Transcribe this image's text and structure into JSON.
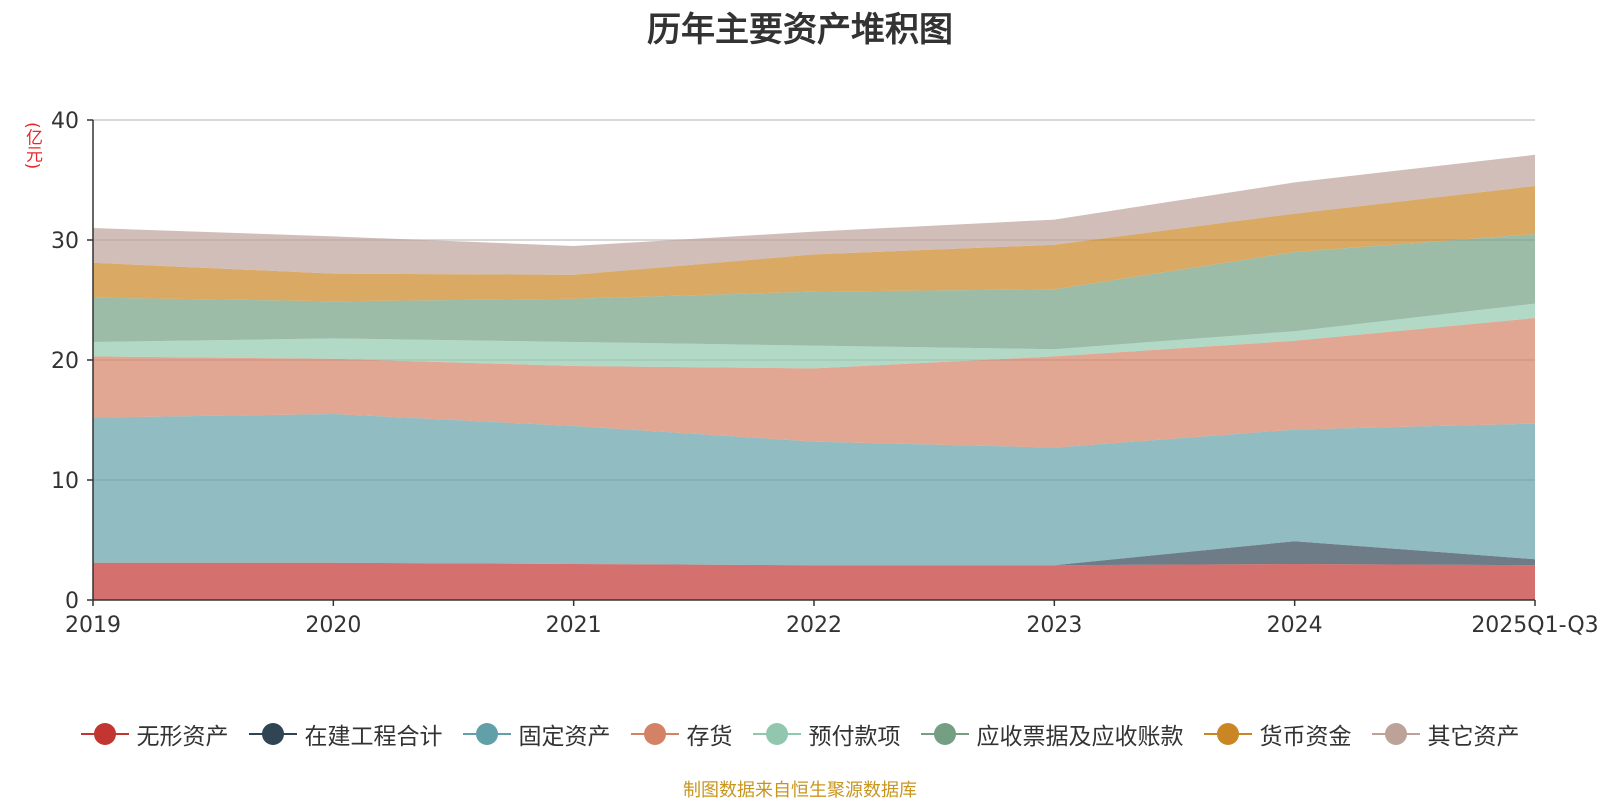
{
  "title": "历年主要资产堆积图",
  "source_note": "制图数据来自恒生聚源数据库",
  "chart_data": {
    "type": "area",
    "stacked": true,
    "title": "历年主要资产堆积图",
    "ylabel": "(亿元)",
    "xlabel": "",
    "categories": [
      "2019",
      "2020",
      "2021",
      "2022",
      "2023",
      "2024",
      "2025Q1-Q3"
    ],
    "ylim": [
      0,
      40
    ],
    "yticks": [
      0,
      10,
      20,
      30,
      40
    ],
    "grid": true,
    "legend_position": "bottom",
    "series": [
      {
        "name": "无形资产",
        "color": "#c23531",
        "values": [
          3.1,
          3.1,
          3.0,
          2.9,
          2.9,
          3.0,
          2.9
        ]
      },
      {
        "name": "在建工程合计",
        "color": "#2f4554",
        "values": [
          0.0,
          0.0,
          0.0,
          0.0,
          0.0,
          1.9,
          0.5
        ]
      },
      {
        "name": "固定资产",
        "color": "#61a0a8",
        "values": [
          12.1,
          12.4,
          11.5,
          10.3,
          9.8,
          9.3,
          11.3
        ]
      },
      {
        "name": "存货",
        "color": "#d48265",
        "values": [
          5.1,
          4.6,
          5.0,
          6.1,
          7.6,
          7.4,
          8.8
        ]
      },
      {
        "name": "预付款项",
        "color": "#91c7ae",
        "values": [
          1.2,
          1.7,
          2.0,
          1.9,
          0.6,
          0.8,
          1.2
        ]
      },
      {
        "name": "应收票据及应收账款",
        "color": "#749f83",
        "values": [
          3.7,
          3.1,
          3.6,
          4.5,
          5.0,
          6.6,
          5.8
        ]
      },
      {
        "name": "货币资金",
        "color": "#ca8622",
        "values": [
          2.9,
          2.3,
          2.0,
          3.1,
          3.7,
          3.2,
          4.0
        ]
      },
      {
        "name": "其它资产",
        "color": "#bda29a",
        "values": [
          2.9,
          3.1,
          2.4,
          1.9,
          2.1,
          2.6,
          2.6
        ]
      }
    ]
  }
}
